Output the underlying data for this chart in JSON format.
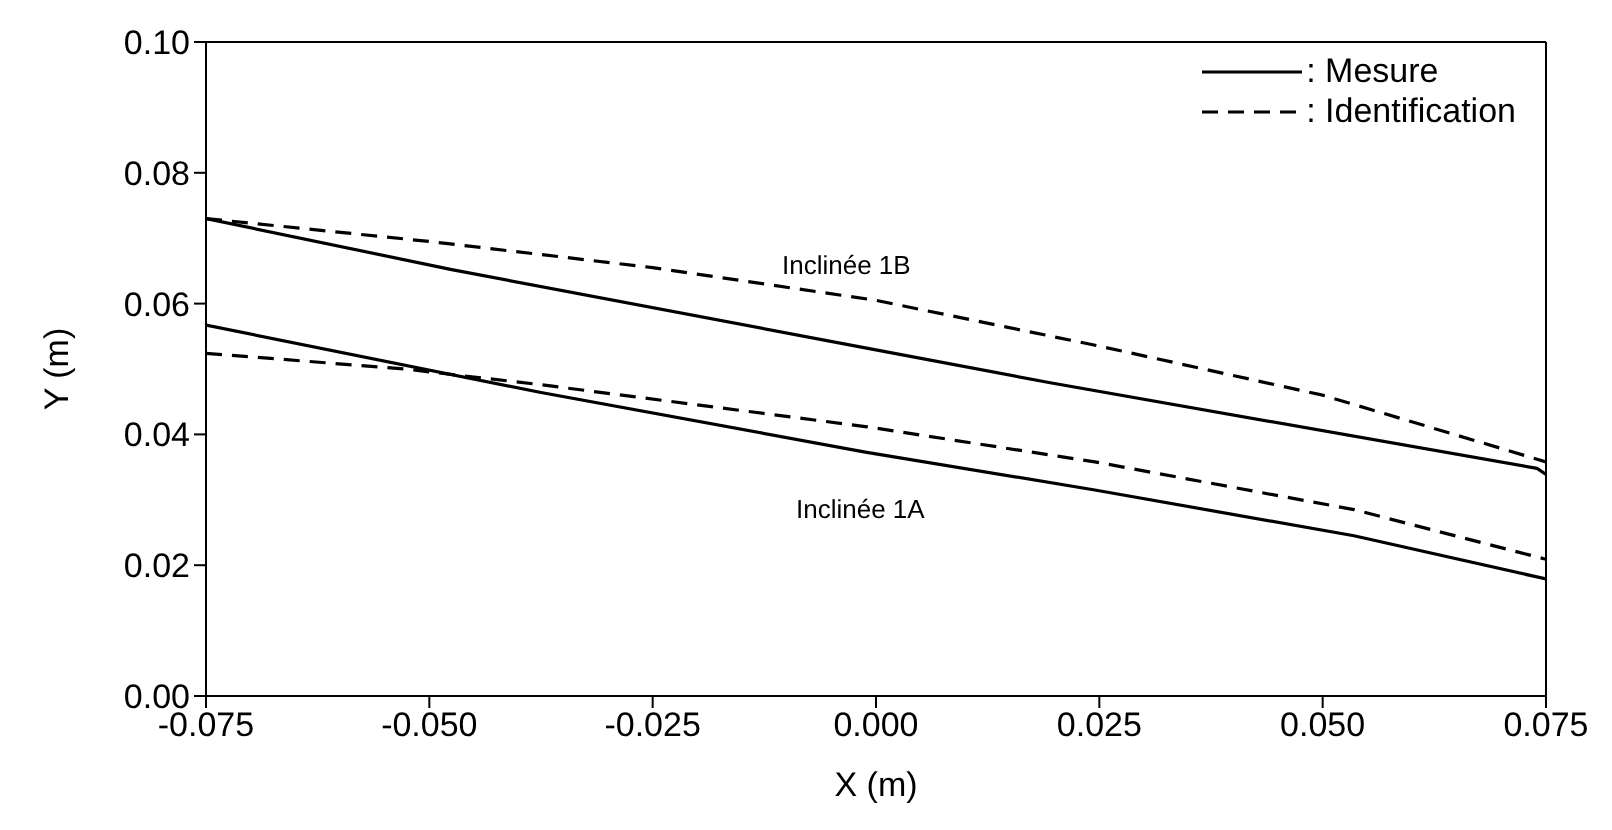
{
  "chart_data": {
    "type": "line",
    "xlabel": "X (m)",
    "ylabel": "Y (m)",
    "xlim": [
      -0.075,
      0.075
    ],
    "ylim": [
      0,
      0.1
    ],
    "xticks": [
      {
        "value": -0.075,
        "label": "-0.075"
      },
      {
        "value": -0.05,
        "label": "-0.050"
      },
      {
        "value": -0.025,
        "label": "-0.025"
      },
      {
        "value": 0,
        "label": "0.000"
      },
      {
        "value": 0.025,
        "label": "0.025"
      },
      {
        "value": 0.05,
        "label": "0.050"
      },
      {
        "value": 0.075,
        "label": "0.075"
      }
    ],
    "yticks": [
      {
        "value": 0,
        "label": "0.00"
      },
      {
        "value": 0.02,
        "label": "0.02"
      },
      {
        "value": 0.04,
        "label": "0.04"
      },
      {
        "value": 0.06,
        "label": "0.06"
      },
      {
        "value": 0.08,
        "label": "0.08"
      },
      {
        "value": 0.1,
        "label": "0.10"
      }
    ],
    "grid": false,
    "legend": "top right",
    "marker": "none",
    "series": [
      {
        "name": ": Mesure",
        "color": "#000000",
        "line_style": "solid",
        "x": [
          -0.075,
          -0.0475,
          -0.0015,
          0.0195,
          0.074,
          0.075
        ],
        "values": [
          0.073,
          0.0652,
          0.0533,
          0.0479,
          0.0348,
          0.0339
        ]
      },
      {
        "name": ": Identification",
        "color": "#000000",
        "line_style": "dashed",
        "x": [
          -0.075,
          -0.05,
          -0.025,
          0,
          0.025,
          0.05,
          0.075
        ],
        "values": [
          0.073,
          0.0695,
          0.0655,
          0.0605,
          0.0535,
          0.046,
          0.0358
        ]
      },
      {
        "color": "#000000",
        "line_style": "solid",
        "x": [
          -0.075,
          -0.0375,
          -0.0012,
          0.0245,
          0.0535,
          0.075
        ],
        "values": [
          0.0567,
          0.0464,
          0.0373,
          0.0315,
          0.0245,
          0.0179
        ]
      },
      {
        "color": "#000000",
        "line_style": "dashed",
        "x": [
          -0.075,
          -0.0528,
          -0.0375,
          -0.0012,
          0.0245,
          0.0535,
          0.075
        ],
        "values": [
          0.0524,
          0.05,
          0.0476,
          0.0412,
          0.0358,
          0.0285,
          0.0209
        ]
      }
    ],
    "annotations": [
      "Inclinée 1B",
      "Inclinée 1A"
    ]
  }
}
